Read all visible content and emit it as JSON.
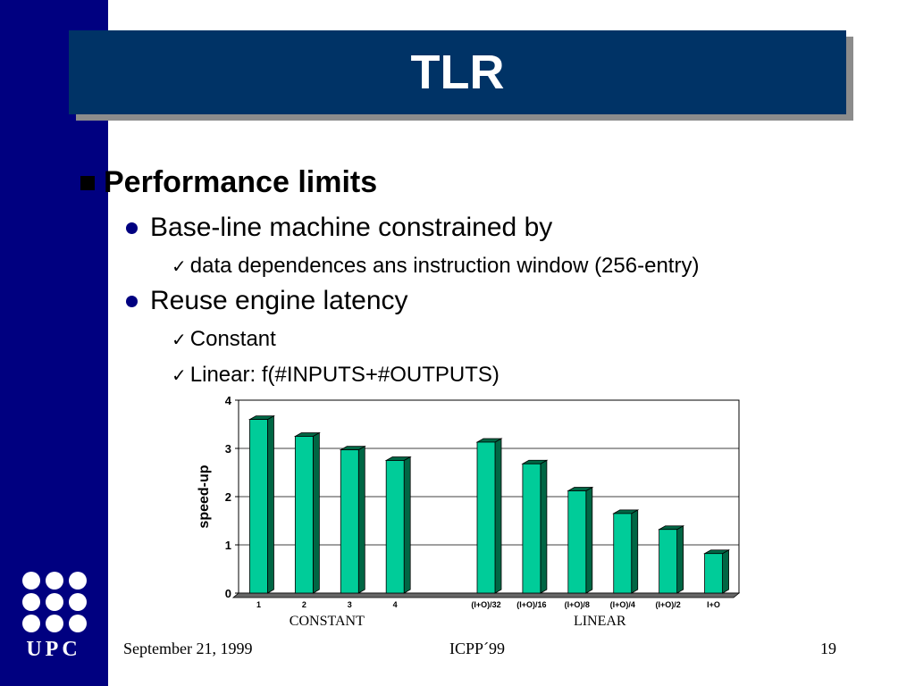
{
  "slide": {
    "title": "TLR",
    "bullets": {
      "b1": "Performance limits",
      "b2": "Base-line machine constrained by",
      "b3": "data dependences ans instruction window (256-entry)",
      "b4": "Reuse engine latency",
      "b5": "Constant",
      "b6": "Linear: f(#INPUTS+#OUTPUTS)"
    },
    "check_glyph": "✓"
  },
  "logo": {
    "text": "UPC"
  },
  "footer": {
    "date": "September 21, 1999",
    "conference": "ICPP´99",
    "page": "19"
  },
  "colors": {
    "sidebar": "#000080",
    "title_bg": "#003366",
    "bar_front": "#00CC99",
    "bar_side": "#006644"
  },
  "chart_data": {
    "type": "bar",
    "ylabel": "speed-up",
    "xlabel": "",
    "ylim": [
      0,
      4
    ],
    "yticks": [
      0,
      1,
      2,
      3,
      4
    ],
    "grid": true,
    "categories": [
      "1",
      "2",
      "3",
      "4",
      "",
      "(I+O)/32",
      "(I+O)/16",
      "(I+O)/8",
      "(I+O)/4",
      "(I+O)/2",
      "I+O"
    ],
    "values": [
      3.6,
      3.25,
      2.97,
      2.75,
      null,
      3.13,
      2.68,
      2.12,
      1.65,
      1.32,
      0.82
    ],
    "groups": [
      {
        "label": "CONSTANT"
      },
      {
        "label": "LINEAR"
      }
    ]
  }
}
